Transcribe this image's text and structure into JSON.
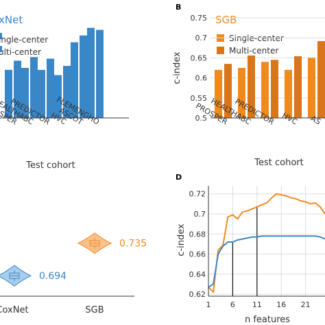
{
  "colors": {
    "coxnet": "#3a87c8",
    "sgb": "#f08a1d",
    "sgb_multi": "#d9751a",
    "axis": "#333333",
    "grid": "#dddddd"
  },
  "chart_data": [
    {
      "id": "A",
      "type": "bar",
      "title": "CoxNet",
      "title_visible": "xNet",
      "xlabel": "Test cohort",
      "ylabel": "",
      "legend": [
        "Single-center",
        "Multi-center"
      ],
      "legend_visible": [
        "ingle-center",
        "ulti-center"
      ],
      "categories": [
        "PROSPER",
        "HEALTHABC",
        "PREDICTOR",
        "HVC",
        "ASCOT",
        "FLEMENGHO"
      ],
      "tick_labels": [
        "OSPER",
        "HEALTHABC",
        "PREDICTOR",
        "HVC",
        "ASCOT",
        "FLEMENGHO"
      ],
      "series": [
        {
          "name": "Single-center",
          "values": [
            0.62,
            0.625,
            0.62,
            0.607,
            0.689,
            0.725
          ]
        },
        {
          "name": "Multi-center",
          "values": [
            0.643,
            0.652,
            0.648,
            0.63,
            0.706,
            0.72
          ]
        }
      ],
      "ylim": [
        0.5,
        0.75
      ]
    },
    {
      "id": "B",
      "panel_label": "B",
      "type": "bar",
      "title": "SGB",
      "xlabel": "Test cohort",
      "ylabel": "c-index",
      "legend": [
        "Single-center",
        "Multi-center"
      ],
      "categories": [
        "PROSPER",
        "HEALTHABC",
        "PREDICTOR",
        "HVC",
        "ASCOT"
      ],
      "tick_labels": [
        "PROSPER",
        "HEALTHABC",
        "PREDICTOR",
        "HVC",
        "AS"
      ],
      "yticks": [
        0.5,
        0.55,
        0.6,
        0.65,
        0.7,
        0.75
      ],
      "ytick_labels": [
        "0.5",
        "0.55",
        "0.6",
        "0.65",
        "0.7",
        "0.75"
      ],
      "series": [
        {
          "name": "Single-center",
          "values": [
            0.62,
            0.625,
            0.64,
            0.62,
            0.65
          ]
        },
        {
          "name": "Multi-center",
          "values": [
            0.635,
            0.656,
            0.645,
            0.654,
            0.692
          ]
        }
      ],
      "ylim": [
        0.5,
        0.75
      ]
    },
    {
      "id": "C",
      "type": "violin",
      "categories": [
        "CoxNet",
        "SGB"
      ],
      "tick_labels": [
        "CoxNet",
        "SGB"
      ],
      "values": [
        0.694,
        0.735
      ],
      "value_labels": [
        "0.694",
        "0.735"
      ],
      "ylim": [
        0.67,
        0.765
      ]
    },
    {
      "id": "D",
      "panel_label": "D",
      "type": "line",
      "xlabel": "n features",
      "ylabel": "c-index",
      "xticks": [
        1,
        6,
        11,
        16,
        21
      ],
      "xtick_labels": [
        "1",
        "6",
        "11",
        "16",
        "21"
      ],
      "yticks": [
        0.62,
        0.64,
        0.66,
        0.68,
        0.7,
        0.72
      ],
      "ytick_labels": [
        "0.62",
        "0.64",
        "0.66",
        "0.68",
        "0.7",
        "0.72"
      ],
      "xlim": [
        1,
        25
      ],
      "ylim": [
        0.618,
        0.728
      ],
      "series": [
        {
          "name": "SGB",
          "color": "sgb",
          "x": [
            1,
            2,
            3,
            4,
            5,
            6,
            7,
            8,
            9,
            10,
            11,
            12,
            13,
            14,
            15,
            16,
            17,
            18,
            19,
            20,
            21,
            22,
            23,
            24,
            25
          ],
          "y": [
            0.627,
            0.622,
            0.664,
            0.669,
            0.697,
            0.699,
            0.695,
            0.702,
            0.703,
            0.705,
            0.707,
            0.709,
            0.711,
            0.716,
            0.72,
            0.719,
            0.718,
            0.716,
            0.715,
            0.713,
            0.712,
            0.71,
            0.711,
            0.707,
            0.7
          ]
        },
        {
          "name": "CoxNet",
          "color": "coxnet",
          "x": [
            1,
            2,
            3,
            4,
            5,
            6,
            7,
            8,
            9,
            10,
            11,
            12,
            13,
            14,
            15,
            16,
            17,
            18,
            19,
            20,
            21,
            22,
            23,
            24,
            25
          ],
          "y": [
            0.627,
            0.63,
            0.66,
            0.668,
            0.672,
            0.672,
            0.674,
            0.675,
            0.676,
            0.677,
            0.677,
            0.678,
            0.678,
            0.678,
            0.678,
            0.678,
            0.678,
            0.678,
            0.678,
            0.678,
            0.678,
            0.678,
            0.678,
            0.677,
            0.675
          ]
        }
      ],
      "markers": [
        {
          "x": 6,
          "series": "CoxNet"
        },
        {
          "x": 11,
          "series": "SGB"
        }
      ]
    }
  ]
}
